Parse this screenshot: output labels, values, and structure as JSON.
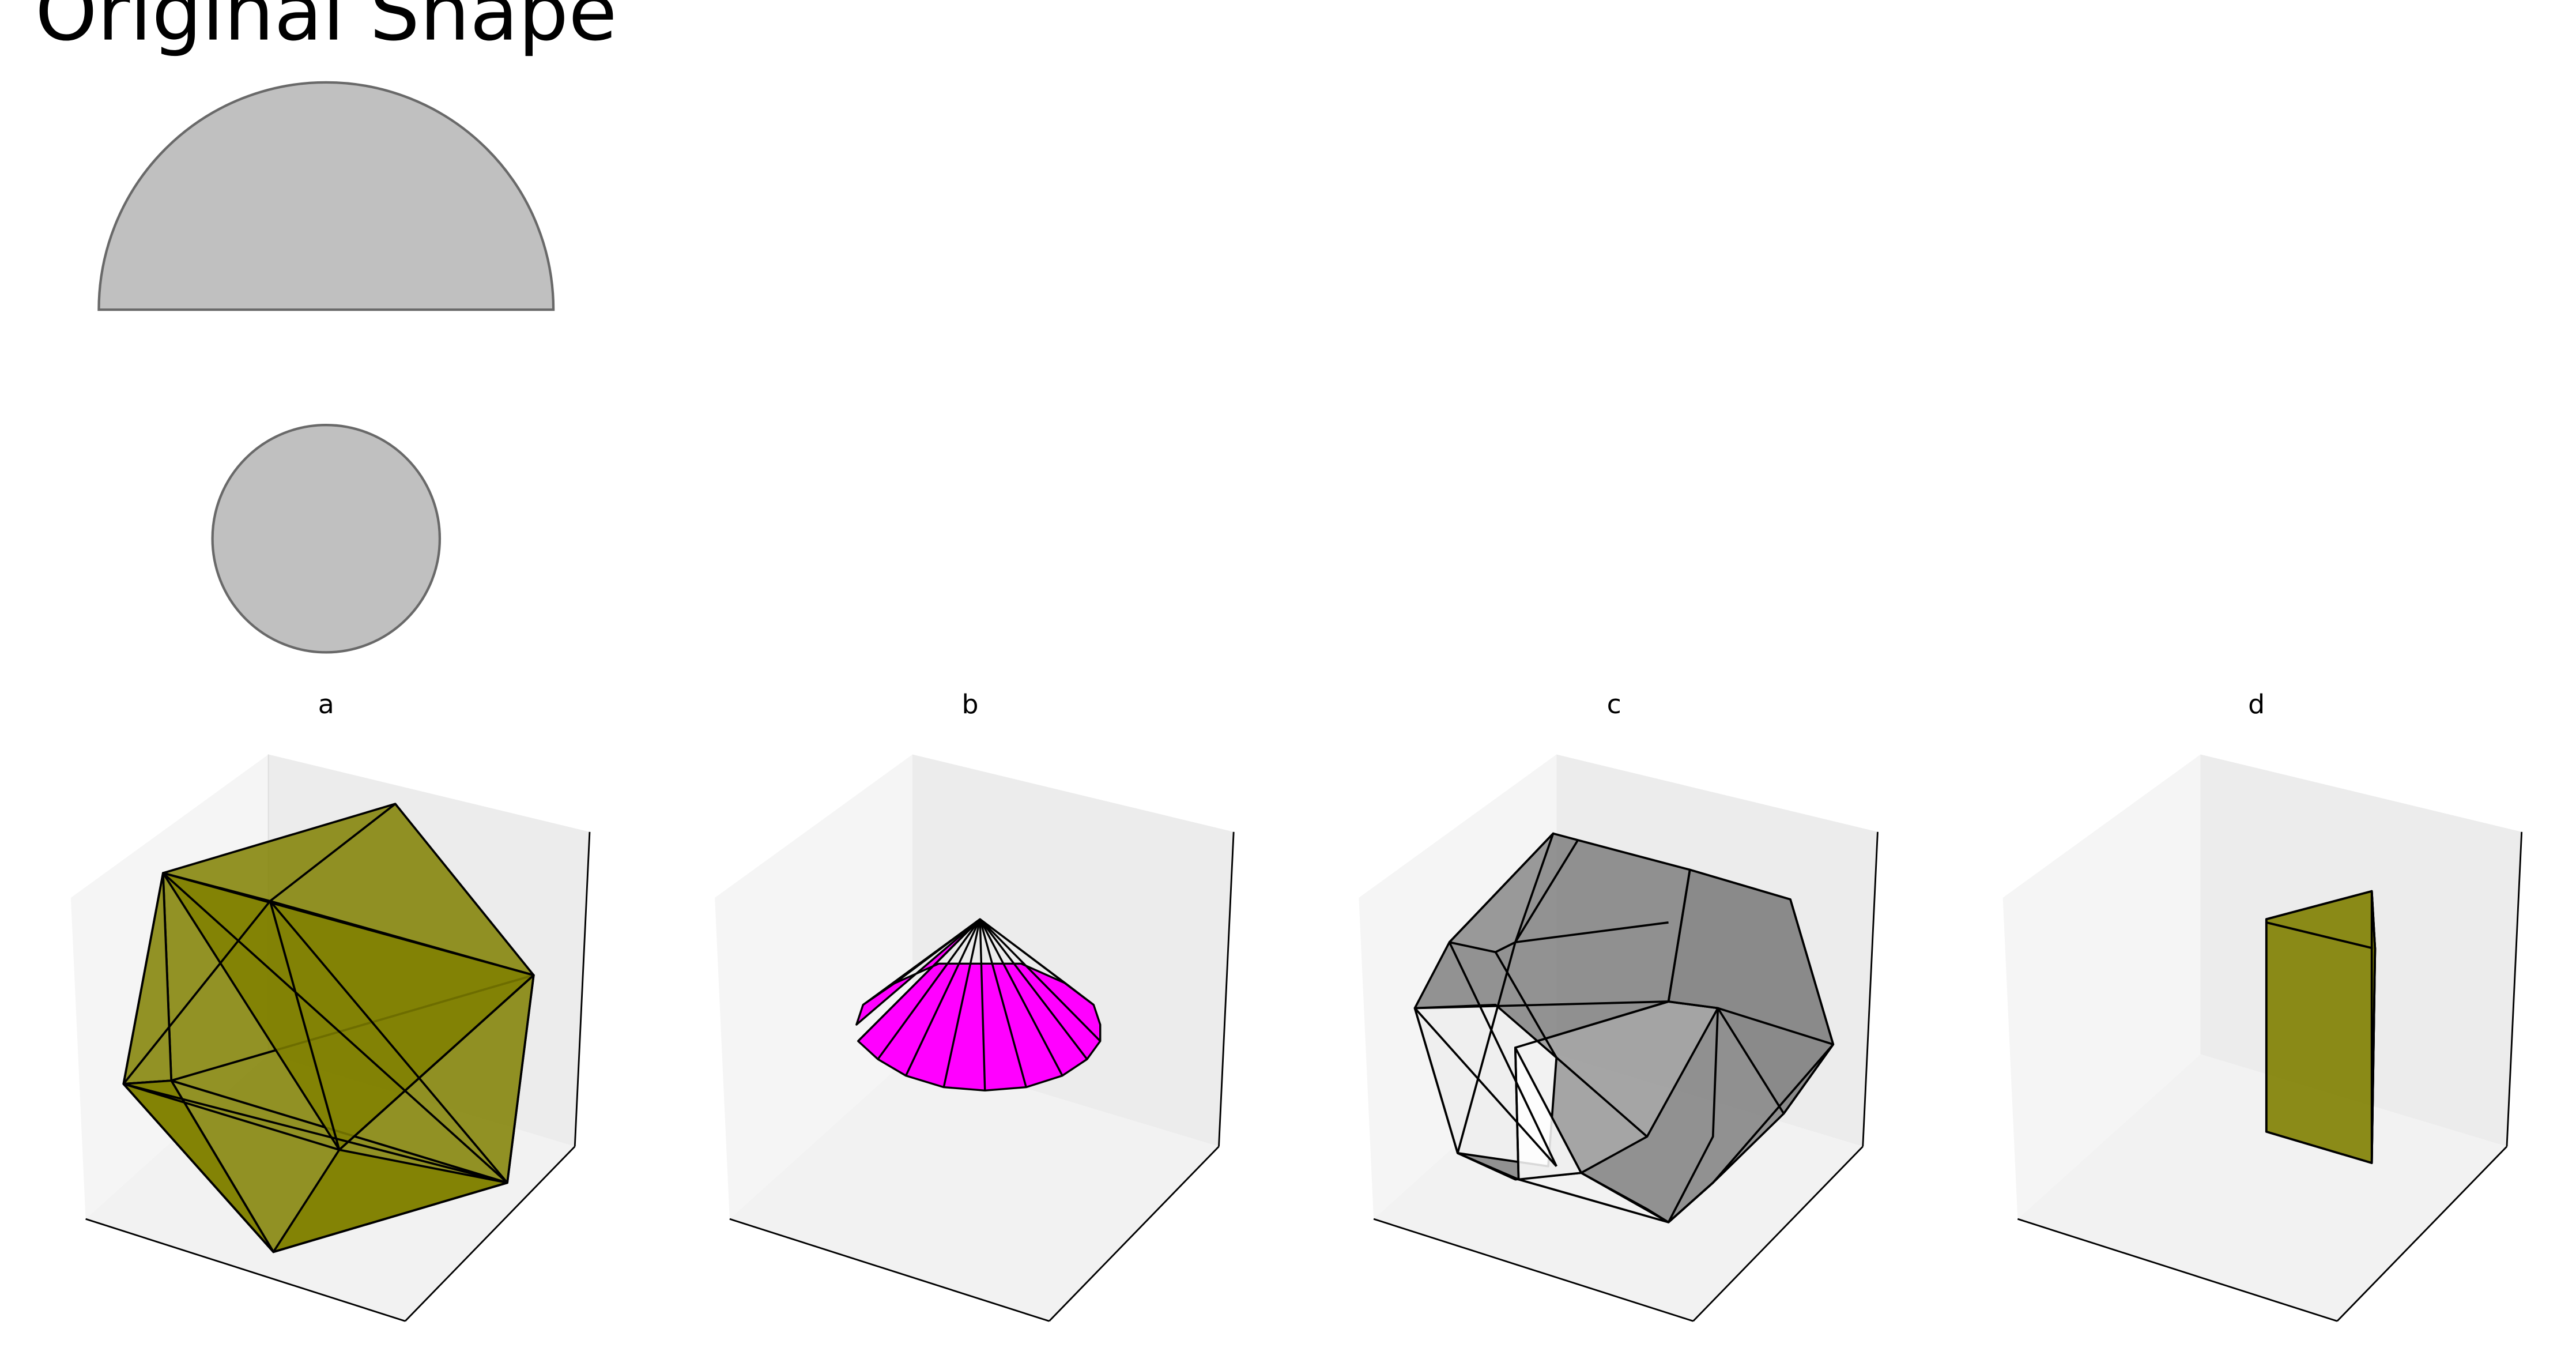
{
  "figure": {
    "original_title": "Original Shape",
    "panels": [
      {
        "title": "a",
        "color": "#808000",
        "edge": "#000000"
      },
      {
        "title": "b",
        "color": "#ff00ff",
        "edge": "#000000"
      },
      {
        "title": "c",
        "color": "#808080",
        "edge": "#000000"
      },
      {
        "title": "d",
        "color": "#808000",
        "edge": "#000000"
      }
    ],
    "original_shapes": [
      {
        "shape": "semicircle",
        "fill": "#c0c0c0",
        "edge": "#696969"
      },
      {
        "shape": "circle",
        "fill": "#c0c0c0",
        "edge": "#696969"
      }
    ],
    "axes_pane_colors": {
      "back": "#f2f2f2",
      "side": "#ececec",
      "floor": "#f7f7f7"
    }
  }
}
